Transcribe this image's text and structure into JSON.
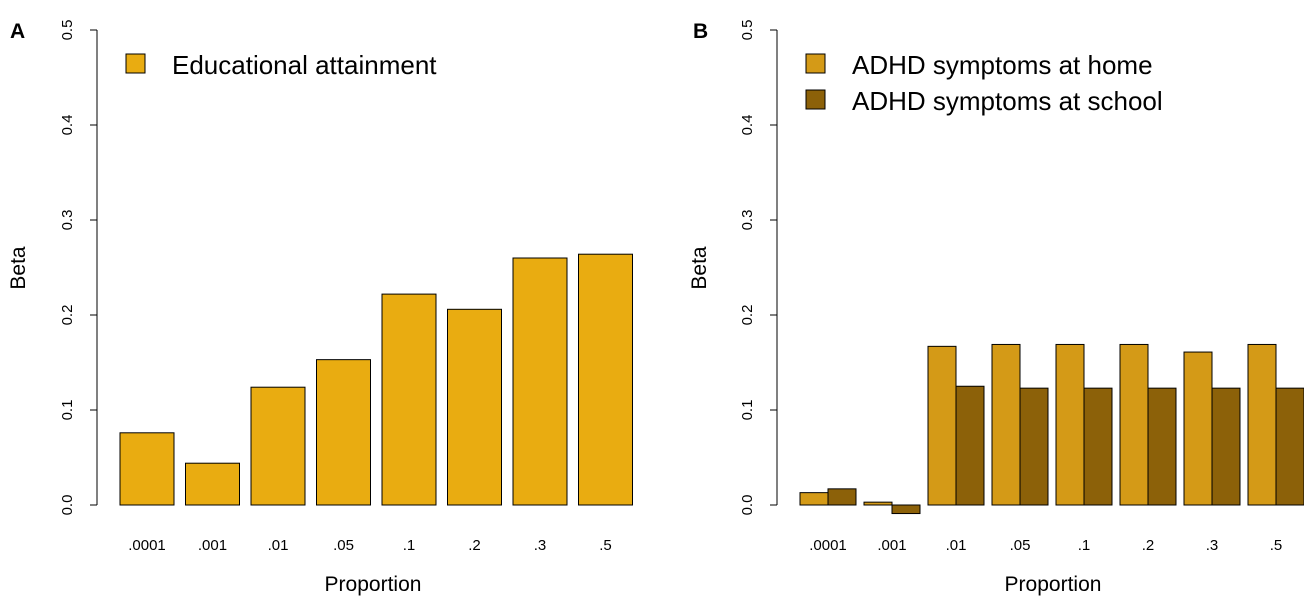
{
  "panel_a": {
    "letter": "A",
    "ylabel": "Beta",
    "xlabel": "Proportion",
    "legend": [
      "Educational attainment"
    ]
  },
  "panel_b": {
    "letter": "B",
    "ylabel": "Beta",
    "xlabel": "Proportion",
    "legend": [
      "ADHD symptoms at home",
      "ADHD symptoms at school"
    ]
  },
  "chart_data": [
    {
      "type": "bar",
      "title": "",
      "xlabel": "Proportion",
      "ylabel": "Beta",
      "ylim": [
        0,
        0.5
      ],
      "yticks": [
        "0.0",
        "0.1",
        "0.2",
        "0.3",
        "0.4",
        "0.5"
      ],
      "categories": [
        ".0001",
        ".001",
        ".01",
        ".05",
        ".1",
        ".2",
        ".3",
        ".5"
      ],
      "series": [
        {
          "name": "Educational attainment",
          "color": "#E9AC11",
          "values": [
            0.076,
            0.044,
            0.124,
            0.153,
            0.222,
            0.206,
            0.26,
            0.264
          ]
        }
      ],
      "legend_position": "top-left",
      "grid": false
    },
    {
      "type": "bar",
      "title": "",
      "xlabel": "Proportion",
      "ylabel": "Beta",
      "ylim": [
        0,
        0.5
      ],
      "yticks": [
        "0.0",
        "0.1",
        "0.2",
        "0.3",
        "0.4",
        "0.5"
      ],
      "categories": [
        ".0001",
        ".001",
        ".01",
        ".05",
        ".1",
        ".2",
        ".3",
        ".5"
      ],
      "series": [
        {
          "name": "ADHD symptoms at home",
          "color": "#D49A17",
          "values": [
            0.013,
            0.003,
            0.167,
            0.169,
            0.169,
            0.169,
            0.161,
            0.169
          ]
        },
        {
          "name": "ADHD symptoms at school",
          "color": "#8C6109",
          "values": [
            0.017,
            -0.009,
            0.125,
            0.123,
            0.123,
            0.123,
            0.123,
            0.123
          ]
        }
      ],
      "legend_position": "top-left",
      "grid": false
    }
  ]
}
